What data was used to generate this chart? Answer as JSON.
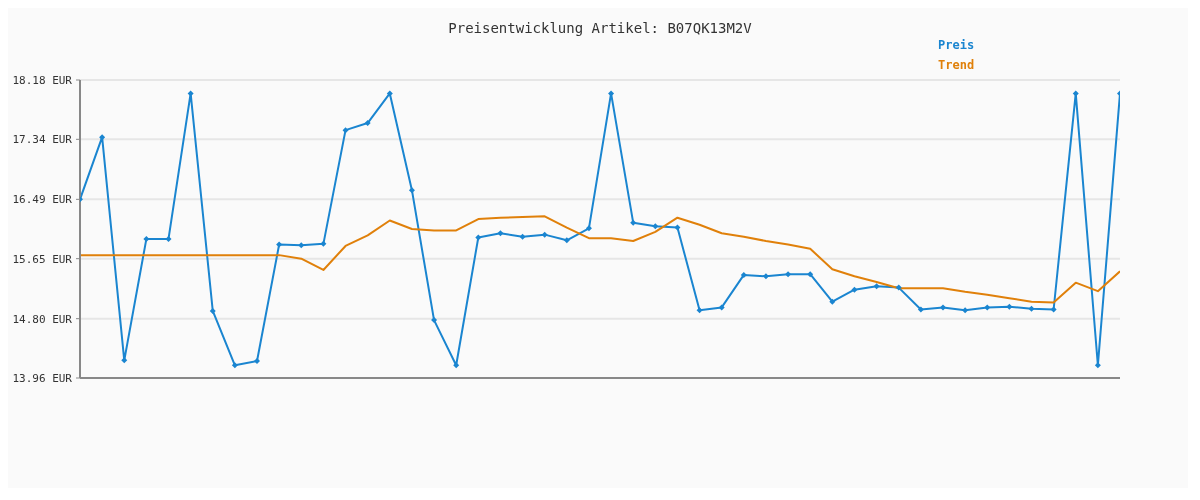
{
  "chart_data": {
    "type": "line",
    "title": "Preisentwicklung Artikel: B07QK13M2V",
    "categories": [
      null,
      null,
      null,
      null,
      null,
      null,
      null,
      null,
      null,
      null,
      null,
      null,
      null,
      null,
      null,
      null,
      null,
      null,
      null,
      null,
      null,
      null,
      null,
      null,
      null,
      null,
      null,
      null,
      null,
      null,
      null,
      null,
      null,
      null,
      null,
      null,
      null,
      null,
      null,
      null,
      null,
      null,
      null,
      null,
      null,
      null,
      null,
      null
    ],
    "series": [
      {
        "name": "Preis",
        "color": "#1a85d0",
        "marker": "diamond",
        "values": [
          16.49,
          17.37,
          14.21,
          15.93,
          15.93,
          17.99,
          14.91,
          14.14,
          14.2,
          15.85,
          15.84,
          15.86,
          17.47,
          17.57,
          17.99,
          16.62,
          14.78,
          14.14,
          15.95,
          16.01,
          15.96,
          15.99,
          15.91,
          16.08,
          17.99,
          16.16,
          16.11,
          16.09,
          14.92,
          14.96,
          15.42,
          15.4,
          15.43,
          15.43,
          15.04,
          15.21,
          15.26,
          15.24,
          14.93,
          14.96,
          14.92,
          14.96,
          14.97,
          14.94,
          14.93,
          17.99,
          14.14,
          17.99
        ]
      },
      {
        "name": "Trend",
        "color": "#e0800a",
        "marker": "none",
        "values": [
          15.7,
          15.7,
          15.7,
          15.7,
          15.7,
          15.7,
          15.7,
          15.7,
          15.7,
          15.7,
          15.65,
          15.49,
          15.83,
          15.98,
          16.19,
          16.07,
          16.05,
          16.05,
          16.21,
          16.23,
          16.24,
          16.25,
          16.09,
          15.94,
          15.94,
          15.9,
          16.03,
          16.23,
          16.13,
          16.01,
          15.96,
          15.9,
          15.85,
          15.79,
          15.5,
          15.4,
          15.32,
          15.23,
          15.23,
          15.23,
          15.18,
          15.14,
          15.09,
          15.04,
          15.03,
          15.31,
          15.19,
          15.47
        ]
      }
    ],
    "ylim": [
      13.96,
      18.18
    ],
    "yticks": [
      {
        "value": 13.96,
        "label": "13.96 EUR"
      },
      {
        "value": 14.8,
        "label": "14.80 EUR"
      },
      {
        "value": 15.65,
        "label": "15.65 EUR"
      },
      {
        "value": 16.49,
        "label": "16.49 EUR"
      },
      {
        "value": 17.34,
        "label": "17.34 EUR"
      },
      {
        "value": 18.18,
        "label": "18.18 EUR"
      }
    ],
    "grid": "y",
    "legend": "top right",
    "tick_labels": "y",
    "line_style": "solid"
  }
}
